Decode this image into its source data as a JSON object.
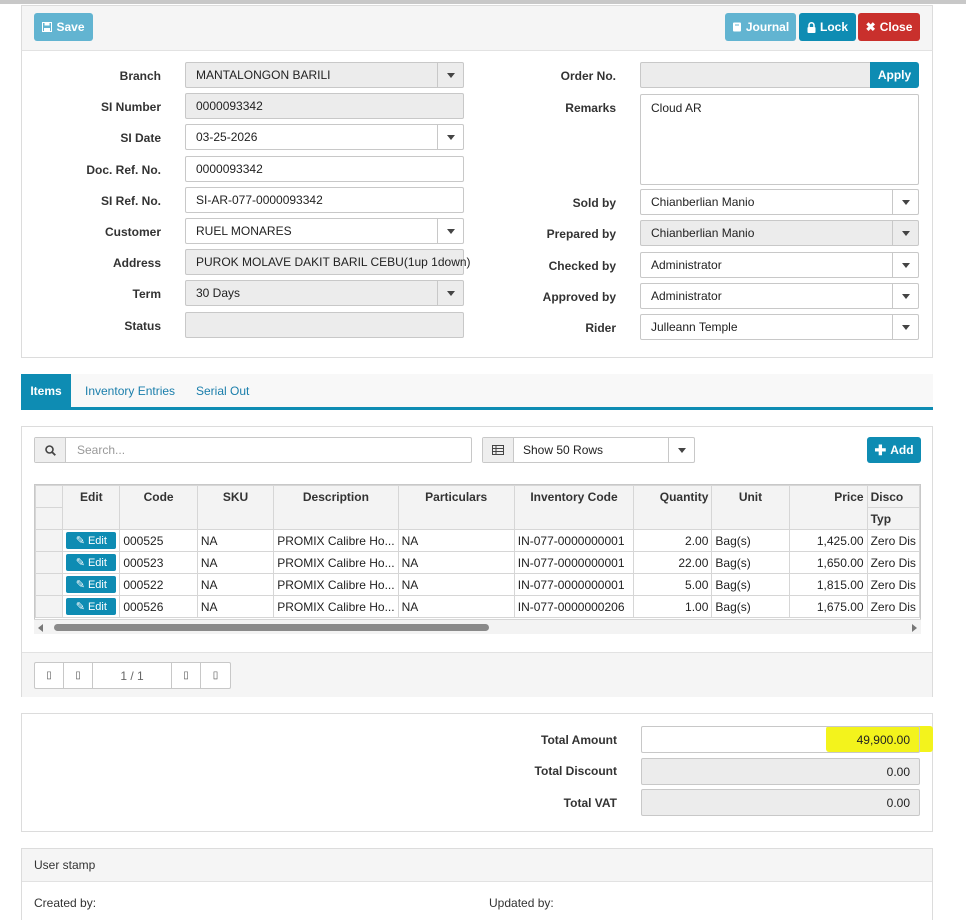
{
  "toolbar": {
    "save_label": "Save",
    "journal_label": "Journal",
    "lock_label": "Lock",
    "close_label": "Close"
  },
  "form": {
    "branch": {
      "label": "Branch",
      "value": "MANTALONGON BARILI"
    },
    "si_number": {
      "label": "SI Number",
      "value": "0000093342"
    },
    "si_date": {
      "label": "SI Date",
      "value": "03-25-2026"
    },
    "doc_ref_no": {
      "label": "Doc. Ref. No.",
      "value": "0000093342"
    },
    "si_ref_no": {
      "label": "SI Ref. No.",
      "value": "SI-AR-077-0000093342"
    },
    "customer": {
      "label": "Customer",
      "value": "RUEL MONARES"
    },
    "address": {
      "label": "Address",
      "value": "PUROK MOLAVE DAKIT BARIL CEBU(1up 1down)"
    },
    "term": {
      "label": "Term",
      "value": "30 Days"
    },
    "status": {
      "label": "Status",
      "value": ""
    },
    "order_no": {
      "label": "Order No.",
      "value": "",
      "apply_label": "Apply"
    },
    "remarks": {
      "label": "Remarks",
      "value": "Cloud AR"
    },
    "sold_by": {
      "label": "Sold by",
      "value": "Chianberlian Manio"
    },
    "prepared_by": {
      "label": "Prepared by",
      "value": "Chianberlian Manio"
    },
    "checked_by": {
      "label": "Checked by",
      "value": "Administrator"
    },
    "approved_by": {
      "label": "Approved by",
      "value": "Administrator"
    },
    "rider": {
      "label": "Rider",
      "value": "Julleann Temple"
    }
  },
  "tabs": [
    {
      "label": "Items",
      "active": true
    },
    {
      "label": "Inventory Entries",
      "active": false
    },
    {
      "label": "Serial Out",
      "active": false
    }
  ],
  "grid": {
    "search_placeholder": "Search...",
    "rows_select": "Show 50 Rows",
    "add_label": "Add",
    "edit_label": "Edit",
    "columns": [
      "Edit",
      "Code",
      "SKU",
      "Description",
      "Particulars",
      "Inventory Code",
      "Quantity",
      "Unit",
      "Price",
      "Disco"
    ],
    "sub_header": "Typ",
    "rows": [
      {
        "code": "000525",
        "sku": "NA",
        "description": "PROMIX Calibre Ho...",
        "particulars": "NA",
        "inventory_code": "IN-077-0000000001",
        "quantity": "2.00",
        "unit": "Bag(s)",
        "price": "1,425.00",
        "discount": "Zero Dis"
      },
      {
        "code": "000523",
        "sku": "NA",
        "description": "PROMIX Calibre Ho...",
        "particulars": "NA",
        "inventory_code": "IN-077-0000000001",
        "quantity": "22.00",
        "unit": "Bag(s)",
        "price": "1,650.00",
        "discount": "Zero Dis"
      },
      {
        "code": "000522",
        "sku": "NA",
        "description": "PROMIX Calibre Ho...",
        "particulars": "NA",
        "inventory_code": "IN-077-0000000001",
        "quantity": "5.00",
        "unit": "Bag(s)",
        "price": "1,815.00",
        "discount": "Zero Dis"
      },
      {
        "code": "000526",
        "sku": "NA",
        "description": "PROMIX Calibre Ho...",
        "particulars": "NA",
        "inventory_code": "IN-077-0000000206",
        "quantity": "1.00",
        "unit": "Bag(s)",
        "price": "1,675.00",
        "discount": "Zero Dis"
      }
    ],
    "pager": {
      "info": "1 / 1"
    }
  },
  "totals": {
    "total_amount": {
      "label": "Total Amount",
      "value": "49,900.00"
    },
    "total_discount": {
      "label": "Total Discount",
      "value": "0.00"
    },
    "total_vat": {
      "label": "Total VAT",
      "value": "0.00"
    },
    "highlight_color": "#f3f31c"
  },
  "user_stamp": {
    "title": "User stamp",
    "created_label": "Created by:",
    "updated_label": "Updated by:"
  },
  "colors": {
    "primary": "#0e8cb3",
    "primary_light": "#62b4d1",
    "danger": "#c9302c"
  }
}
